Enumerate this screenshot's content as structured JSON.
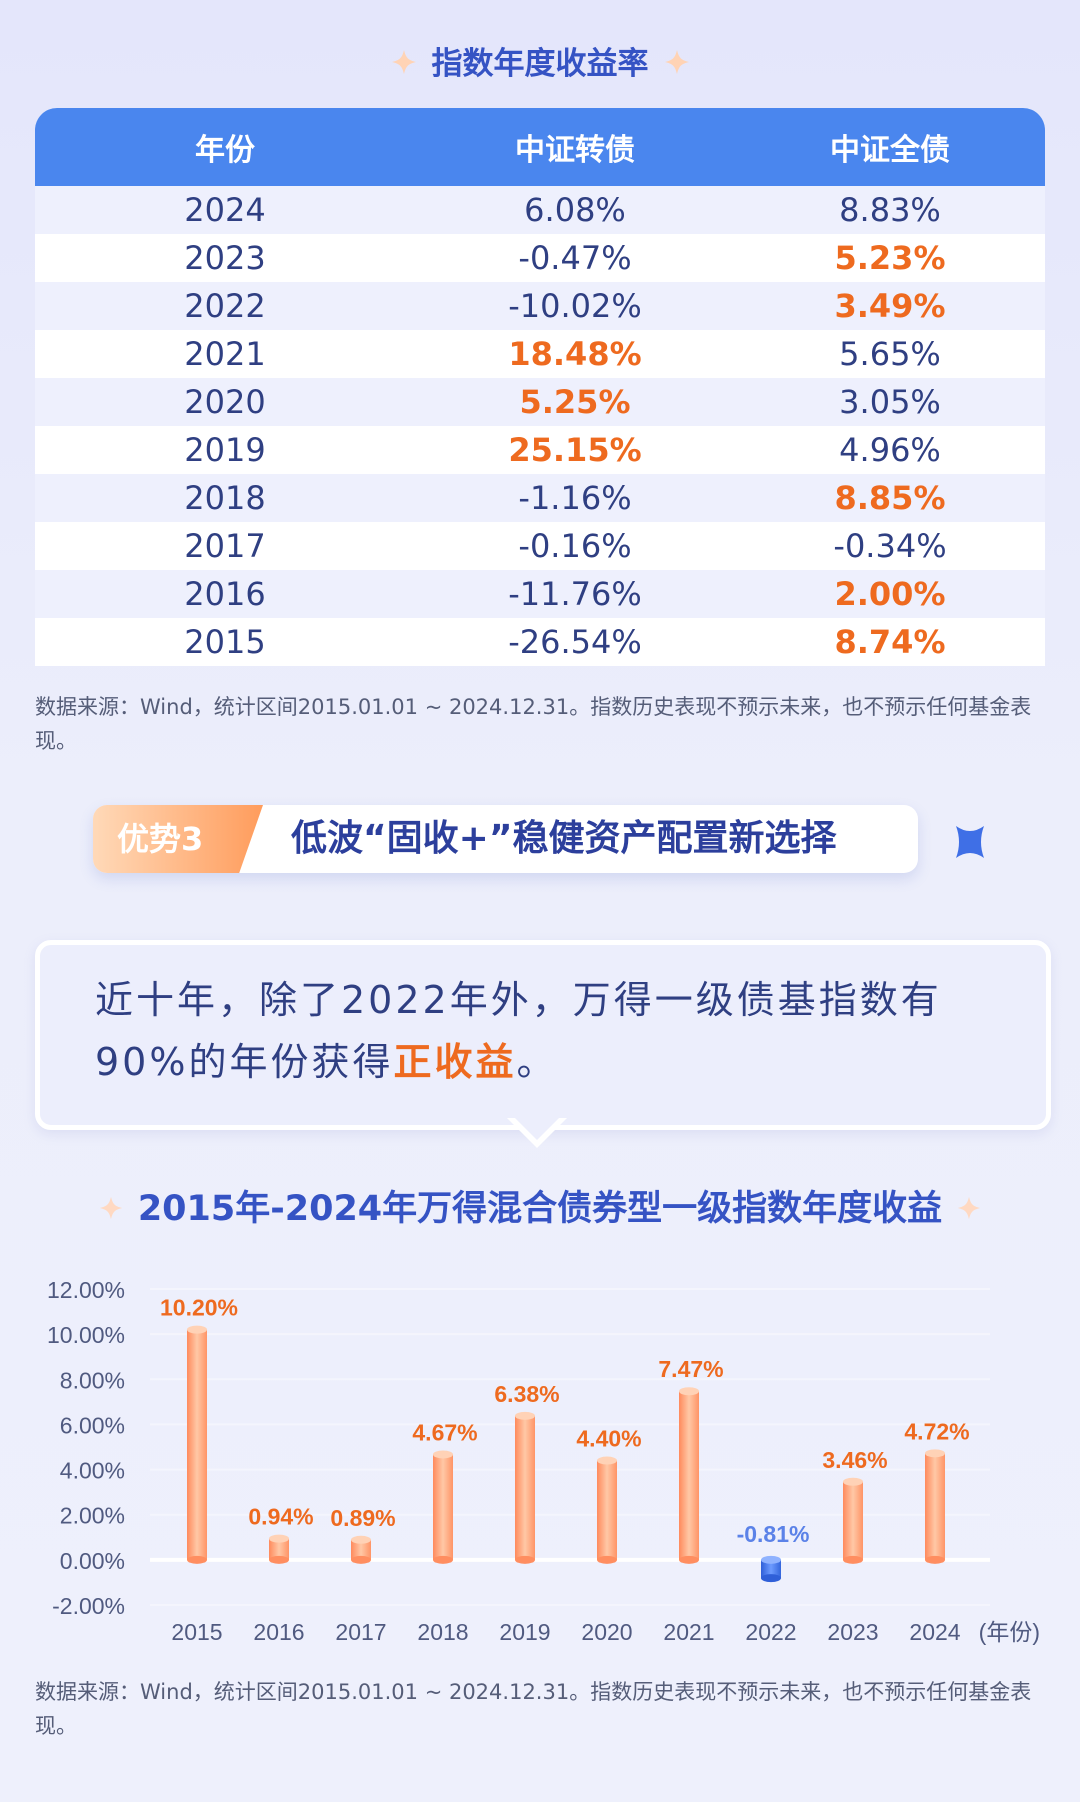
{
  "table_section": {
    "title": "指数年度收益率",
    "headers": [
      "年份",
      "中证转债",
      "中证全债"
    ],
    "rows": [
      {
        "year": "2024",
        "cb": "6.08%",
        "cb_hi": false,
        "all": "8.83%",
        "all_hi": false
      },
      {
        "year": "2023",
        "cb": "-0.47%",
        "cb_hi": false,
        "all": "5.23%",
        "all_hi": true
      },
      {
        "year": "2022",
        "cb": "-10.02%",
        "cb_hi": false,
        "all": "3.49%",
        "all_hi": true
      },
      {
        "year": "2021",
        "cb": "18.48%",
        "cb_hi": true,
        "all": "5.65%",
        "all_hi": false
      },
      {
        "year": "2020",
        "cb": "5.25%",
        "cb_hi": true,
        "all": "3.05%",
        "all_hi": false
      },
      {
        "year": "2019",
        "cb": "25.15%",
        "cb_hi": true,
        "all": "4.96%",
        "all_hi": false
      },
      {
        "year": "2018",
        "cb": "-1.16%",
        "cb_hi": false,
        "all": "8.85%",
        "all_hi": true
      },
      {
        "year": "2017",
        "cb": "-0.16%",
        "cb_hi": false,
        "all": "-0.34%",
        "all_hi": false
      },
      {
        "year": "2016",
        "cb": "-11.76%",
        "cb_hi": false,
        "all": "2.00%",
        "all_hi": true
      },
      {
        "year": "2015",
        "cb": "-26.54%",
        "cb_hi": false,
        "all": "8.74%",
        "all_hi": true
      }
    ],
    "note": "数据来源：Wind，统计区间2015.01.01 ~ 2024.12.31。指数历史表现不预示未来，也不预示任何基金表现。"
  },
  "advantage": {
    "tag": "优势3",
    "text": "低波“固收+”稳健资产配置新选择"
  },
  "callout": {
    "text_before": "近十年，除了2022年外，万得一级债基指数有90%的年份获得",
    "text_highlight": "正收益",
    "text_after": "。"
  },
  "chart_section": {
    "title": "2015年-2024年万得混合债券型一级指数年度收益",
    "note": "数据来源：Wind，统计区间2015.01.01 ~ 2024.12.31。指数历史表现不预示未来，也不预示任何基金表现。"
  },
  "colors": {
    "accent_blue": "#4a86ee",
    "highlight_orange": "#ee6a1f",
    "bar_orange": "#ffa27a",
    "bar_blue": "#3b6fe0"
  },
  "chart_data": {
    "type": "bar",
    "categories": [
      "2015",
      "2016",
      "2017",
      "2018",
      "2019",
      "2020",
      "2021",
      "2022",
      "2023",
      "2024"
    ],
    "values": [
      10.2,
      0.94,
      0.89,
      4.67,
      6.38,
      4.4,
      7.47,
      -0.81,
      3.46,
      4.72
    ],
    "value_labels": [
      "10.20%",
      "0.94%",
      "0.89%",
      "4.67%",
      "6.38%",
      "4.40%",
      "7.47%",
      "-0.81%",
      "3.46%",
      "4.72%"
    ],
    "y_tick_labels": [
      "12.00%",
      "10.00%",
      "8.00%",
      "6.00%",
      "4.00%",
      "2.00%",
      "0.00%",
      "-2.00%"
    ],
    "y_ticks": [
      12,
      10,
      8,
      6,
      4,
      2,
      0,
      -2
    ],
    "ylim": [
      -2,
      12
    ],
    "xlabel": "(年份)",
    "ylabel": "",
    "grid": true
  }
}
